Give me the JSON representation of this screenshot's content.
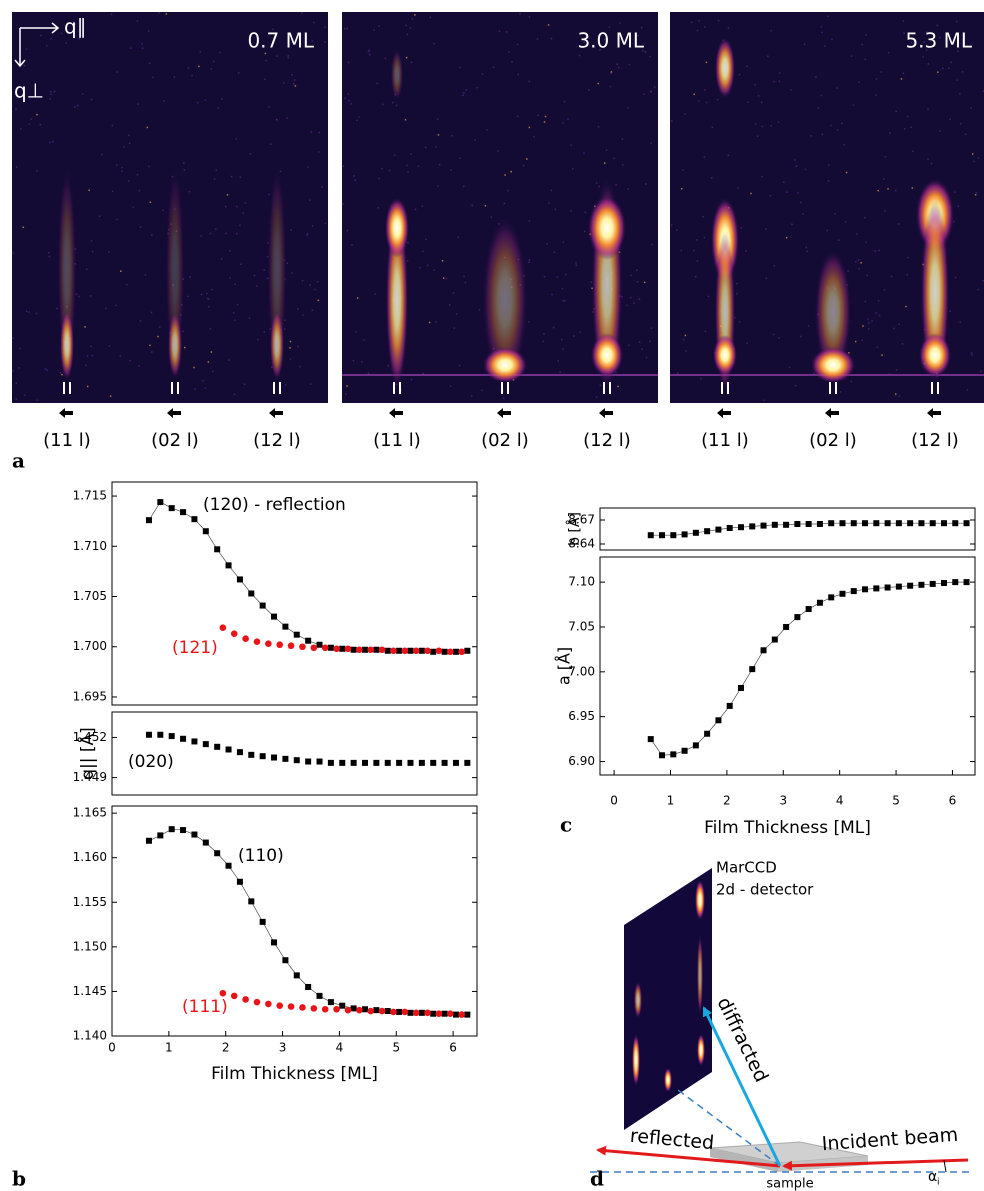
{
  "panel_a": {
    "letter": "a",
    "q_parallel": "q∥",
    "q_perp": "q⊥",
    "images": [
      {
        "label": "0.7 ML",
        "reflections": [
          "(11 l)",
          "(02 l)",
          "(12 l)"
        ]
      },
      {
        "label": "3.0 ML",
        "reflections": [
          "(11 l)",
          "(02 l)",
          "(12 l)"
        ]
      },
      {
        "label": "5.3 ML",
        "reflections": [
          "(11 l)",
          "(02 l)",
          "(12 l)"
        ]
      }
    ]
  },
  "panel_b": {
    "letter": "b"
  },
  "panel_c": {
    "letter": "c"
  },
  "chart_data": [
    {
      "type": "line",
      "xlim": [
        0,
        6.42
      ],
      "ylim": [
        1.6942,
        1.7164
      ],
      "yticks": [
        {
          "value": 1.695,
          "label": "1.695"
        },
        {
          "value": 1.7,
          "label": "1.700"
        },
        1.705,
        {
          "value": 1.71,
          "label": "1.710"
        },
        1.715
      ],
      "series": [
        {
          "name": "(120) - reflection",
          "color": "#000000",
          "marker": "square",
          "connected": true,
          "x": [
            0.65,
            0.85,
            1.05,
            1.25,
            1.45,
            1.65,
            1.85,
            2.05,
            2.25,
            2.45,
            2.65,
            2.85,
            3.05,
            3.25,
            3.45,
            3.65,
            3.85,
            4.05,
            4.25,
            4.45,
            4.65,
            4.85,
            5.05,
            5.25,
            5.45,
            5.65,
            5.85,
            6.05,
            6.25
          ],
          "values": [
            1.7126,
            1.7144,
            1.7138,
            1.7134,
            1.7127,
            1.7115,
            1.7097,
            1.7081,
            1.7067,
            1.7053,
            1.7041,
            1.703,
            1.702,
            1.7012,
            1.7006,
            1.7002,
            1.6999,
            1.6998,
            1.6997,
            1.6997,
            1.6997,
            1.6996,
            1.6996,
            1.6996,
            1.6996,
            1.6995,
            1.6995,
            1.6995,
            1.6996
          ]
        },
        {
          "name": "(121)",
          "color": "#e8141a",
          "marker": "circle",
          "connected": false,
          "x": [
            1.95,
            2.15,
            2.35,
            2.55,
            2.75,
            2.95,
            3.15,
            3.35,
            3.55,
            3.75,
            3.95,
            4.15,
            4.35,
            4.55,
            4.75,
            4.95,
            5.15,
            5.35,
            5.55,
            5.75,
            5.95,
            6.15
          ],
          "values": [
            1.7019,
            1.7013,
            1.7008,
            1.7005,
            1.7003,
            1.7002,
            1.7001,
            1.7,
            1.6999,
            1.6999,
            1.6998,
            1.6998,
            1.6997,
            1.6997,
            1.6997,
            1.6996,
            1.6996,
            1.6996,
            1.6996,
            1.6996,
            1.6995,
            1.6995
          ]
        }
      ]
    },
    {
      "type": "line",
      "ylabel": "q|| [Å]",
      "xlim": [
        0,
        6.42
      ],
      "ylim": [
        1.4477,
        1.4539
      ],
      "yticks": [
        1.449,
        1.452
      ],
      "series": [
        {
          "name": "(020)",
          "color": "#000000",
          "marker": "square",
          "connected": false,
          "x": [
            0.65,
            0.85,
            1.05,
            1.25,
            1.45,
            1.65,
            1.85,
            2.05,
            2.25,
            2.45,
            2.65,
            2.85,
            3.05,
            3.25,
            3.45,
            3.65,
            3.85,
            4.05,
            4.25,
            4.45,
            4.65,
            4.85,
            5.05,
            5.25,
            5.45,
            5.65,
            5.85,
            6.05,
            6.25
          ],
          "values": [
            1.4522,
            1.4522,
            1.4521,
            1.4519,
            1.4517,
            1.4515,
            1.4513,
            1.4511,
            1.4509,
            1.4507,
            1.4506,
            1.4505,
            1.4504,
            1.4503,
            1.4502,
            1.4502,
            1.4501,
            1.4501,
            1.4501,
            1.4501,
            1.4501,
            1.4501,
            1.4501,
            1.4501,
            1.4501,
            1.4501,
            1.4501,
            1.4501,
            1.4501
          ]
        }
      ]
    },
    {
      "type": "line",
      "xlabel": "Film Thickness [ML]",
      "xlim": [
        0,
        6.42
      ],
      "xticks": [
        0,
        1,
        2,
        3,
        4,
        5,
        6
      ],
      "ylim": [
        1.14,
        1.1658
      ],
      "yticks": [
        {
          "value": 1.14,
          "label": "1.140"
        },
        1.145,
        {
          "value": 1.15,
          "label": "1.150"
        },
        1.155,
        {
          "value": 1.16,
          "label": "1.160"
        },
        1.165
      ],
      "series": [
        {
          "name": "(110)",
          "color": "#000000",
          "marker": "square",
          "connected": true,
          "x": [
            0.65,
            0.85,
            1.05,
            1.25,
            1.45,
            1.65,
            1.85,
            2.05,
            2.25,
            2.45,
            2.65,
            2.85,
            3.05,
            3.25,
            3.45,
            3.65,
            3.85,
            4.05,
            4.25,
            4.45,
            4.65,
            4.85,
            5.05,
            5.25,
            5.45,
            5.65,
            5.85,
            6.05,
            6.25
          ],
          "values": [
            1.1619,
            1.1625,
            1.1632,
            1.1631,
            1.1626,
            1.1617,
            1.1605,
            1.1591,
            1.1573,
            1.1551,
            1.1528,
            1.1505,
            1.1485,
            1.1468,
            1.1455,
            1.1445,
            1.1438,
            1.1434,
            1.1431,
            1.143,
            1.1429,
            1.1428,
            1.1427,
            1.1426,
            1.1426,
            1.1425,
            1.1425,
            1.1424,
            1.1424
          ]
        },
        {
          "name": "(111)",
          "color": "#e8141a",
          "marker": "circle",
          "connected": false,
          "x": [
            1.95,
            2.15,
            2.35,
            2.55,
            2.75,
            2.95,
            3.15,
            3.35,
            3.55,
            3.75,
            3.95,
            4.15,
            4.35,
            4.55,
            4.75,
            4.95,
            5.15,
            5.35,
            5.55,
            5.75,
            5.95,
            6.15
          ],
          "values": [
            1.1448,
            1.1445,
            1.1441,
            1.1438,
            1.1436,
            1.1434,
            1.1433,
            1.1432,
            1.1431,
            1.143,
            1.143,
            1.1429,
            1.1429,
            1.1428,
            1.1428,
            1.1427,
            1.1427,
            1.1426,
            1.1426,
            1.1425,
            1.1425,
            1.1424
          ]
        }
      ]
    },
    {
      "type": "line",
      "ylabel": "b [Å]",
      "xlim": [
        -0.25,
        6.4
      ],
      "ylim": [
        8.6325,
        8.685
      ],
      "yticks": [
        8.64,
        8.67
      ],
      "series": [
        {
          "color": "#000000",
          "marker": "square",
          "connected": true,
          "x": [
            0.65,
            0.85,
            1.05,
            1.25,
            1.45,
            1.65,
            1.85,
            2.05,
            2.25,
            2.45,
            2.65,
            2.85,
            3.05,
            3.25,
            3.45,
            3.65,
            3.85,
            4.05,
            4.25,
            4.45,
            4.65,
            4.85,
            5.05,
            5.25,
            5.45,
            5.65,
            5.85,
            6.05,
            6.25
          ],
          "values": [
            8.651,
            8.651,
            8.651,
            8.652,
            8.654,
            8.656,
            8.658,
            8.66,
            8.661,
            8.662,
            8.663,
            8.664,
            8.664,
            8.665,
            8.665,
            8.665,
            8.666,
            8.666,
            8.666,
            8.666,
            8.666,
            8.666,
            8.666,
            8.666,
            8.666,
            8.666,
            8.666,
            8.666,
            8.666
          ]
        }
      ]
    },
    {
      "type": "line",
      "ylabel": "a [Å]",
      "xlabel": "Film Thickness [ML]",
      "xlim": [
        -0.25,
        6.4
      ],
      "xticks": [
        0,
        1,
        2,
        3,
        4,
        5,
        6
      ],
      "ylim": [
        6.885,
        7.128
      ],
      "yticks": [
        {
          "value": 6.9,
          "label": "6.90"
        },
        6.95,
        {
          "value": 7.0,
          "label": "7.00"
        },
        7.05,
        {
          "value": 7.1,
          "label": "7.10"
        }
      ],
      "series": [
        {
          "color": "#000000",
          "marker": "square",
          "connected": true,
          "x": [
            0.65,
            0.85,
            1.05,
            1.25,
            1.45,
            1.65,
            1.85,
            2.05,
            2.25,
            2.45,
            2.65,
            2.85,
            3.05,
            3.25,
            3.45,
            3.65,
            3.85,
            4.05,
            4.25,
            4.45,
            4.65,
            4.85,
            5.05,
            5.25,
            5.45,
            5.65,
            5.85,
            6.05,
            6.25
          ],
          "values": [
            6.925,
            6.907,
            6.908,
            6.912,
            6.918,
            6.931,
            6.946,
            6.962,
            6.982,
            7.003,
            7.024,
            7.036,
            7.05,
            7.061,
            7.07,
            7.077,
            7.083,
            7.087,
            7.09,
            7.092,
            7.093,
            7.094,
            7.095,
            7.096,
            7.097,
            7.098,
            7.099,
            7.1,
            7.1
          ]
        }
      ]
    }
  ],
  "diagram": {
    "letter": "d",
    "detector_name": "MarCCD",
    "detector_type": "2d - detector",
    "diffracted": "diffracted",
    "reflected": "reflected",
    "incident": "Incident beam",
    "angle": "α",
    "angle_sub": "i",
    "sample": "sample"
  }
}
